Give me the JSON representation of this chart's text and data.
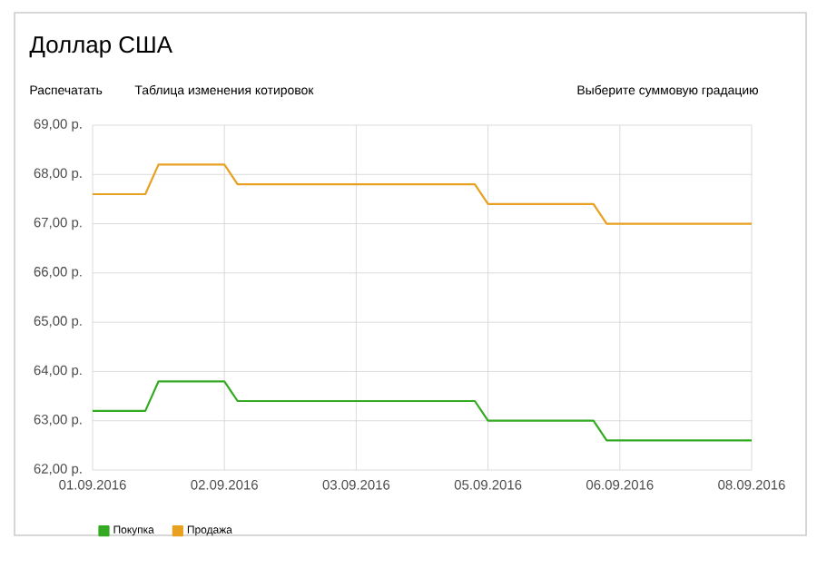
{
  "chart_data": {
    "type": "line",
    "title": "Доллар США",
    "annotations": [
      "Распечатать",
      "Таблица изменения котировок",
      "Выберите суммовую градацию"
    ],
    "categories": [
      "01.09.2016",
      null,
      null,
      null,
      null,
      null,
      null,
      null,
      null,
      null,
      "02.09.2016",
      null,
      null,
      null,
      null,
      null,
      null,
      null,
      null,
      null,
      "03.09.2016",
      null,
      null,
      null,
      null,
      null,
      null,
      null,
      null,
      null,
      "05.09.2016",
      null,
      null,
      null,
      null,
      null,
      null,
      null,
      null,
      null,
      "06.09.2016",
      null,
      null,
      null,
      null,
      null,
      null,
      null,
      null,
      null,
      "08.09.2016"
    ],
    "ylim": [
      62,
      69
    ],
    "yticks": [
      {
        "value": 62,
        "label": "62,00 р."
      },
      {
        "value": 63,
        "label": "63,00 р."
      },
      {
        "value": 64,
        "label": "64,00 р."
      },
      {
        "value": 65,
        "label": "65,00 р."
      },
      {
        "value": 66,
        "label": "66,00 р."
      },
      {
        "value": 67,
        "label": "67,00 р."
      },
      {
        "value": 68,
        "label": "68,00 р."
      },
      {
        "value": 69,
        "label": "69,00 р."
      }
    ],
    "grid": true,
    "legend": "bottom left",
    "marker": "none",
    "line_style": "solid",
    "series": [
      {
        "name": "Покупка",
        "color": "#33aa22",
        "values": [
          63.2,
          63.2,
          63.2,
          63.2,
          63.2,
          63.8,
          63.8,
          63.8,
          63.8,
          63.8,
          63.8,
          63.4,
          63.4,
          63.4,
          63.4,
          63.4,
          63.4,
          63.4,
          63.4,
          63.4,
          63.4,
          63.4,
          63.4,
          63.4,
          63.4,
          63.4,
          63.4,
          63.4,
          63.4,
          63.4,
          63.0,
          63.0,
          63.0,
          63.0,
          63.0,
          63.0,
          63.0,
          63.0,
          63.0,
          62.6,
          62.6,
          62.6,
          62.6,
          62.6,
          62.6,
          62.6,
          62.6,
          62.6,
          62.6,
          62.6,
          62.6
        ]
      },
      {
        "name": "Продажа",
        "color": "#e8a020",
        "values": [
          67.6,
          67.6,
          67.6,
          67.6,
          67.6,
          68.2,
          68.2,
          68.2,
          68.2,
          68.2,
          68.2,
          67.8,
          67.8,
          67.8,
          67.8,
          67.8,
          67.8,
          67.8,
          67.8,
          67.8,
          67.8,
          67.8,
          67.8,
          67.8,
          67.8,
          67.8,
          67.8,
          67.8,
          67.8,
          67.8,
          67.4,
          67.4,
          67.4,
          67.4,
          67.4,
          67.4,
          67.4,
          67.4,
          67.4,
          67.0,
          67.0,
          67.0,
          67.0,
          67.0,
          67.0,
          67.0,
          67.0,
          67.0,
          67.0,
          67.0,
          67.0
        ]
      }
    ]
  }
}
